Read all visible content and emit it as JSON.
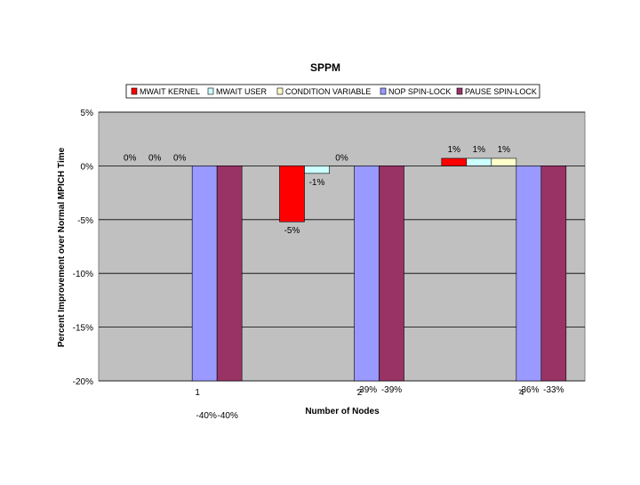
{
  "chart_data": {
    "type": "bar",
    "title": "SPPM",
    "xlabel": "Number of Nodes",
    "ylabel": "Percent Improvement over Normal MPICH Time",
    "categories": [
      "1",
      "2",
      "4"
    ],
    "ylim": [
      -20,
      5
    ],
    "yticks": [
      5,
      0,
      -5,
      -10,
      -15,
      -20
    ],
    "ytick_labels": [
      "5%",
      "0%",
      "-5%",
      "-10%",
      "-15%",
      "-20%"
    ],
    "grid": true,
    "legend_position": "top",
    "series": [
      {
        "name": "MWAIT KERNEL",
        "color": "#ff0000",
        "values": [
          0,
          -5.2,
          0.7
        ],
        "labels": [
          "0%",
          "-5%",
          "1%"
        ]
      },
      {
        "name": "MWAIT USER",
        "color": "#ccffff",
        "values": [
          0,
          -0.7,
          0.7
        ],
        "labels": [
          "0%",
          "-1%",
          "1%"
        ]
      },
      {
        "name": "CONDITION VARIABLE",
        "color": "#ffffcc",
        "values": [
          0,
          0,
          0.7
        ],
        "labels": [
          "0%",
          "0%",
          "1%"
        ]
      },
      {
        "name": "NOP SPIN-LOCK",
        "color": "#9999ff",
        "values": [
          -40,
          -39,
          -36
        ],
        "labels": [
          "-40%",
          "-39%",
          "-36%"
        ]
      },
      {
        "name": "PAUSE SPIN-LOCK",
        "color": "#993366",
        "values": [
          -40,
          -39,
          -33
        ],
        "labels": [
          "-40%",
          "-39%",
          "-33%"
        ]
      }
    ],
    "colors": {
      "plot_background": "#c0c0c0",
      "gridline": "#000000"
    }
  }
}
